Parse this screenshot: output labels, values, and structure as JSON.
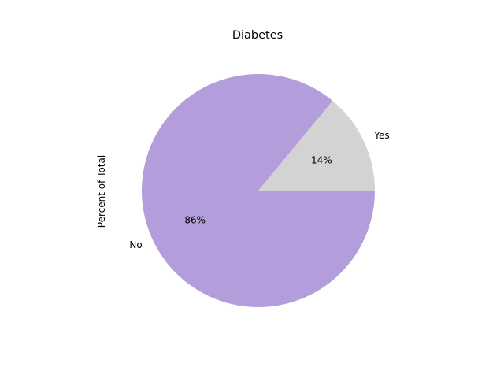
{
  "chart_data": {
    "type": "pie",
    "title": "Diabetes",
    "ylabel": "Percent of Total",
    "slices": [
      {
        "label": "Yes",
        "value": 14,
        "pct_label": "14%",
        "color": "#d3d3d3"
      },
      {
        "label": "No",
        "value": 86,
        "pct_label": "86%",
        "color": "#b39ddb"
      }
    ],
    "start_angle_deg": 0,
    "direction": "counterclockwise"
  }
}
